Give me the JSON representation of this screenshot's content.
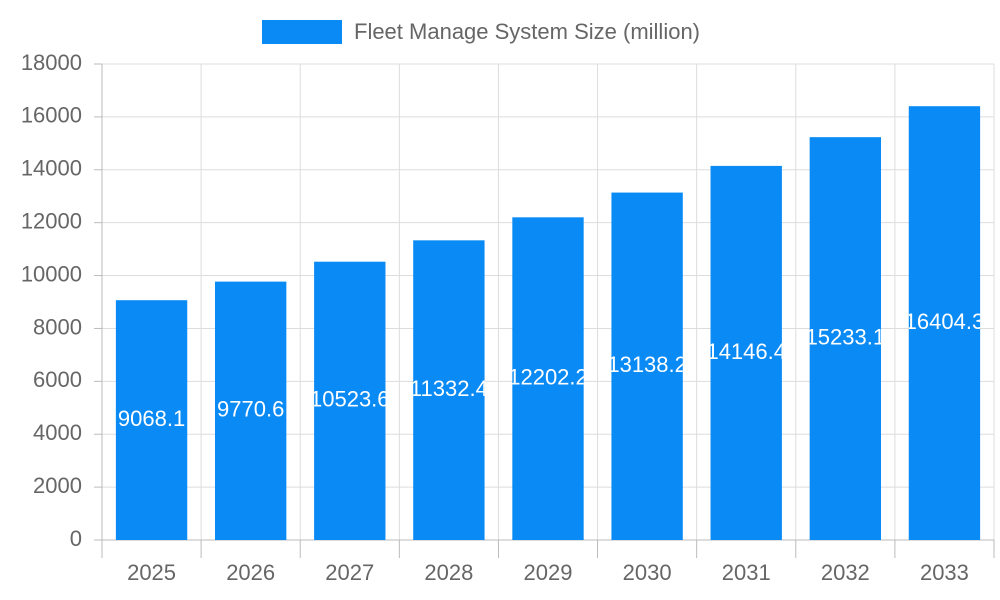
{
  "chart_data": {
    "type": "bar",
    "series": [
      {
        "name": "Fleet Manage System Size (million)",
        "color": "#0a8af5",
        "values": [
          9068.1,
          9770.6,
          10523.6,
          11332.4,
          12202.2,
          13138.2,
          14146.4,
          15233.1,
          16404.3
        ]
      }
    ],
    "categories": [
      "2025",
      "2026",
      "2027",
      "2028",
      "2029",
      "2030",
      "2031",
      "2032",
      "2033"
    ],
    "ylim": [
      0,
      18000
    ],
    "yticks": [
      0,
      2000,
      4000,
      6000,
      8000,
      10000,
      12000,
      14000,
      16000,
      18000
    ],
    "grid": true,
    "legend": "top"
  }
}
